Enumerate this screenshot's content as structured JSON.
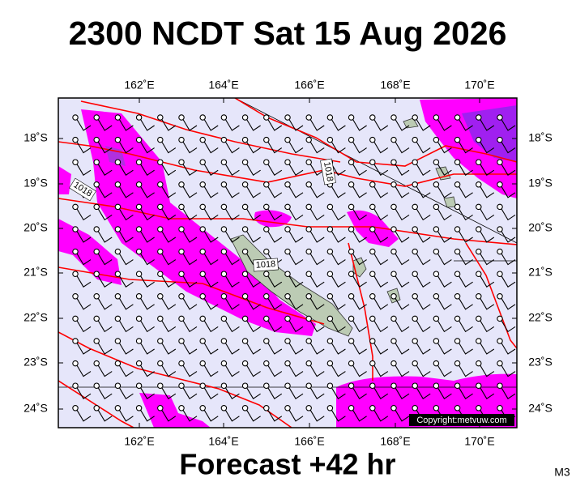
{
  "header": {
    "title": "2300 NCDT Sat 15 Aug 2026"
  },
  "map": {
    "lon_labels": [
      "162˚E",
      "164˚E",
      "166˚E",
      "168˚E",
      "170˚E"
    ],
    "lat_labels": [
      "18˚S",
      "19˚S",
      "20˚S",
      "21˚S",
      "22˚S",
      "23˚S",
      "24˚S"
    ],
    "isobar_labels": [
      "1018",
      "1018",
      "1018"
    ],
    "copyright": "Copyright:metvuw.com"
  },
  "footer": {
    "forecast": "Forecast +42 hr",
    "code": "M3"
  }
}
